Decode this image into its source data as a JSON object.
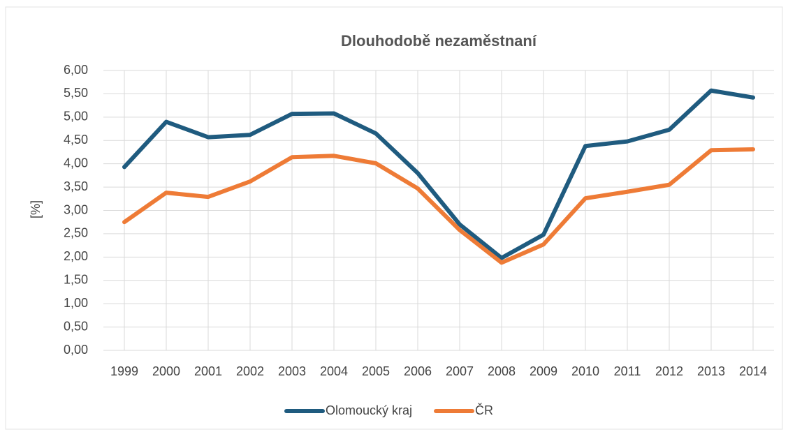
{
  "chart_data": {
    "type": "line",
    "title": "Dlouhodobě nezaměstnaní",
    "y_label": "[%]",
    "categories": [
      "1999",
      "2000",
      "2001",
      "2002",
      "2003",
      "2004",
      "2005",
      "2006",
      "2007",
      "2008",
      "2009",
      "2010",
      "2011",
      "2012",
      "2013",
      "2014"
    ],
    "series": [
      {
        "name": "Olomoucký kraj",
        "color": "#1f5b7f",
        "values": [
          3.93,
          4.9,
          4.57,
          4.62,
          5.07,
          5.08,
          4.65,
          3.8,
          2.7,
          1.98,
          2.48,
          4.38,
          4.48,
          4.73,
          5.57,
          5.42
        ]
      },
      {
        "name": "ČR",
        "color": "#ee7b36",
        "values": [
          2.75,
          3.38,
          3.29,
          3.62,
          4.14,
          4.17,
          4.01,
          3.47,
          2.58,
          1.88,
          2.27,
          3.26,
          3.4,
          3.55,
          4.29,
          4.31
        ]
      }
    ],
    "ylim": [
      0,
      6
    ],
    "yticks": [
      {
        "value": 0,
        "label": "0,00"
      },
      {
        "value": 0.5,
        "label": "0,50"
      },
      {
        "value": 1,
        "label": "1,00"
      },
      {
        "value": 1.5,
        "label": "1,50"
      },
      {
        "value": 2,
        "label": "2,00"
      },
      {
        "value": 2.5,
        "label": "2,50"
      },
      {
        "value": 3,
        "label": "3,00"
      },
      {
        "value": 3.5,
        "label": "3,50"
      },
      {
        "value": 4,
        "label": "4,00"
      },
      {
        "value": 4.5,
        "label": "4,50"
      },
      {
        "value": 5,
        "label": "5,00"
      },
      {
        "value": 5.5,
        "label": "5,50"
      },
      {
        "value": 6,
        "label": "6,00"
      }
    ],
    "grid": true,
    "legend": "bottom"
  }
}
